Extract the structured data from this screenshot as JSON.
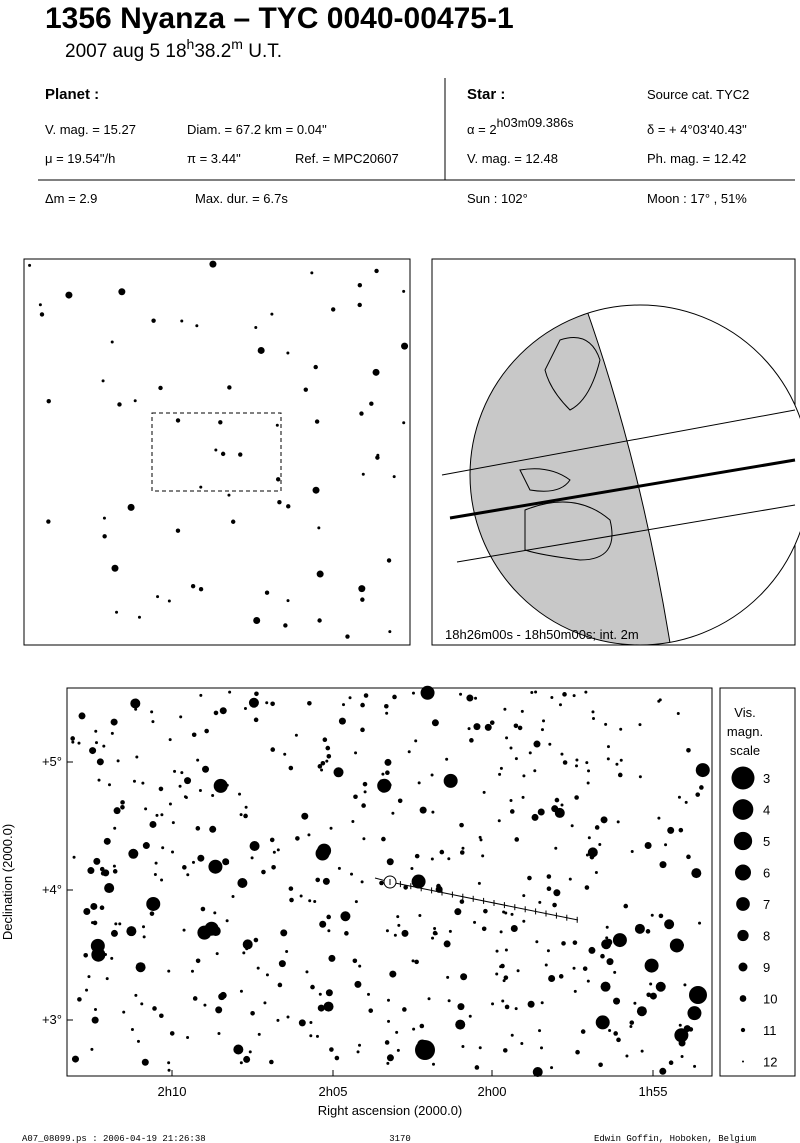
{
  "header": {
    "title": "1356 Nyanza  –  TYC 0040-00475-1",
    "date": [
      "2007 aug  5  18",
      "h",
      "38.2",
      "m",
      " U.T."
    ]
  },
  "planet": {
    "heading": "Planet :",
    "vmag": "V. mag. = 15.27",
    "diam": "Diam. = 67.2 km = 0.04\"",
    "mu": "μ =  19.54\"/h",
    "pi": "π =  3.44\"",
    "ref": "Ref. = MPC20607"
  },
  "star": {
    "heading": "Star :",
    "source": "Source cat.  TYC2",
    "ra": [
      "α =  2",
      "h",
      "03",
      "m",
      "09.386",
      "s"
    ],
    "dec": "δ = + 4°03'40.43\"",
    "vmag": "V. mag. = 12.48",
    "phmag": "Ph. mag. = 12.42"
  },
  "event": {
    "dm": "Δm = 2.9",
    "maxdur": "Max. dur. = 6.7s",
    "sun": "Sun : 102°",
    "moon": "Moon :  17° , 51%"
  },
  "globe_caption": "18h26m00s - 18h50m00s; int.  2m",
  "chart": {
    "x_label": "Right ascension (2000.0)",
    "y_label": "Declination (2000.0)",
    "x_ticks": [
      "2h10",
      "2h05",
      "2h00",
      "1h55"
    ],
    "y_ticks": [
      "+5°",
      "+4°",
      "+3°"
    ]
  },
  "scale": {
    "title": [
      "Vis.",
      "magn.",
      "scale"
    ],
    "magnitudes": [
      3,
      4,
      5,
      6,
      7,
      8,
      9,
      10,
      11,
      12
    ]
  },
  "footer": {
    "left": "A07_08099.ps : 2006-04-19 21:26:38",
    "center": "3170",
    "right": "Edwin Goffin, Hoboken, Belgium"
  }
}
